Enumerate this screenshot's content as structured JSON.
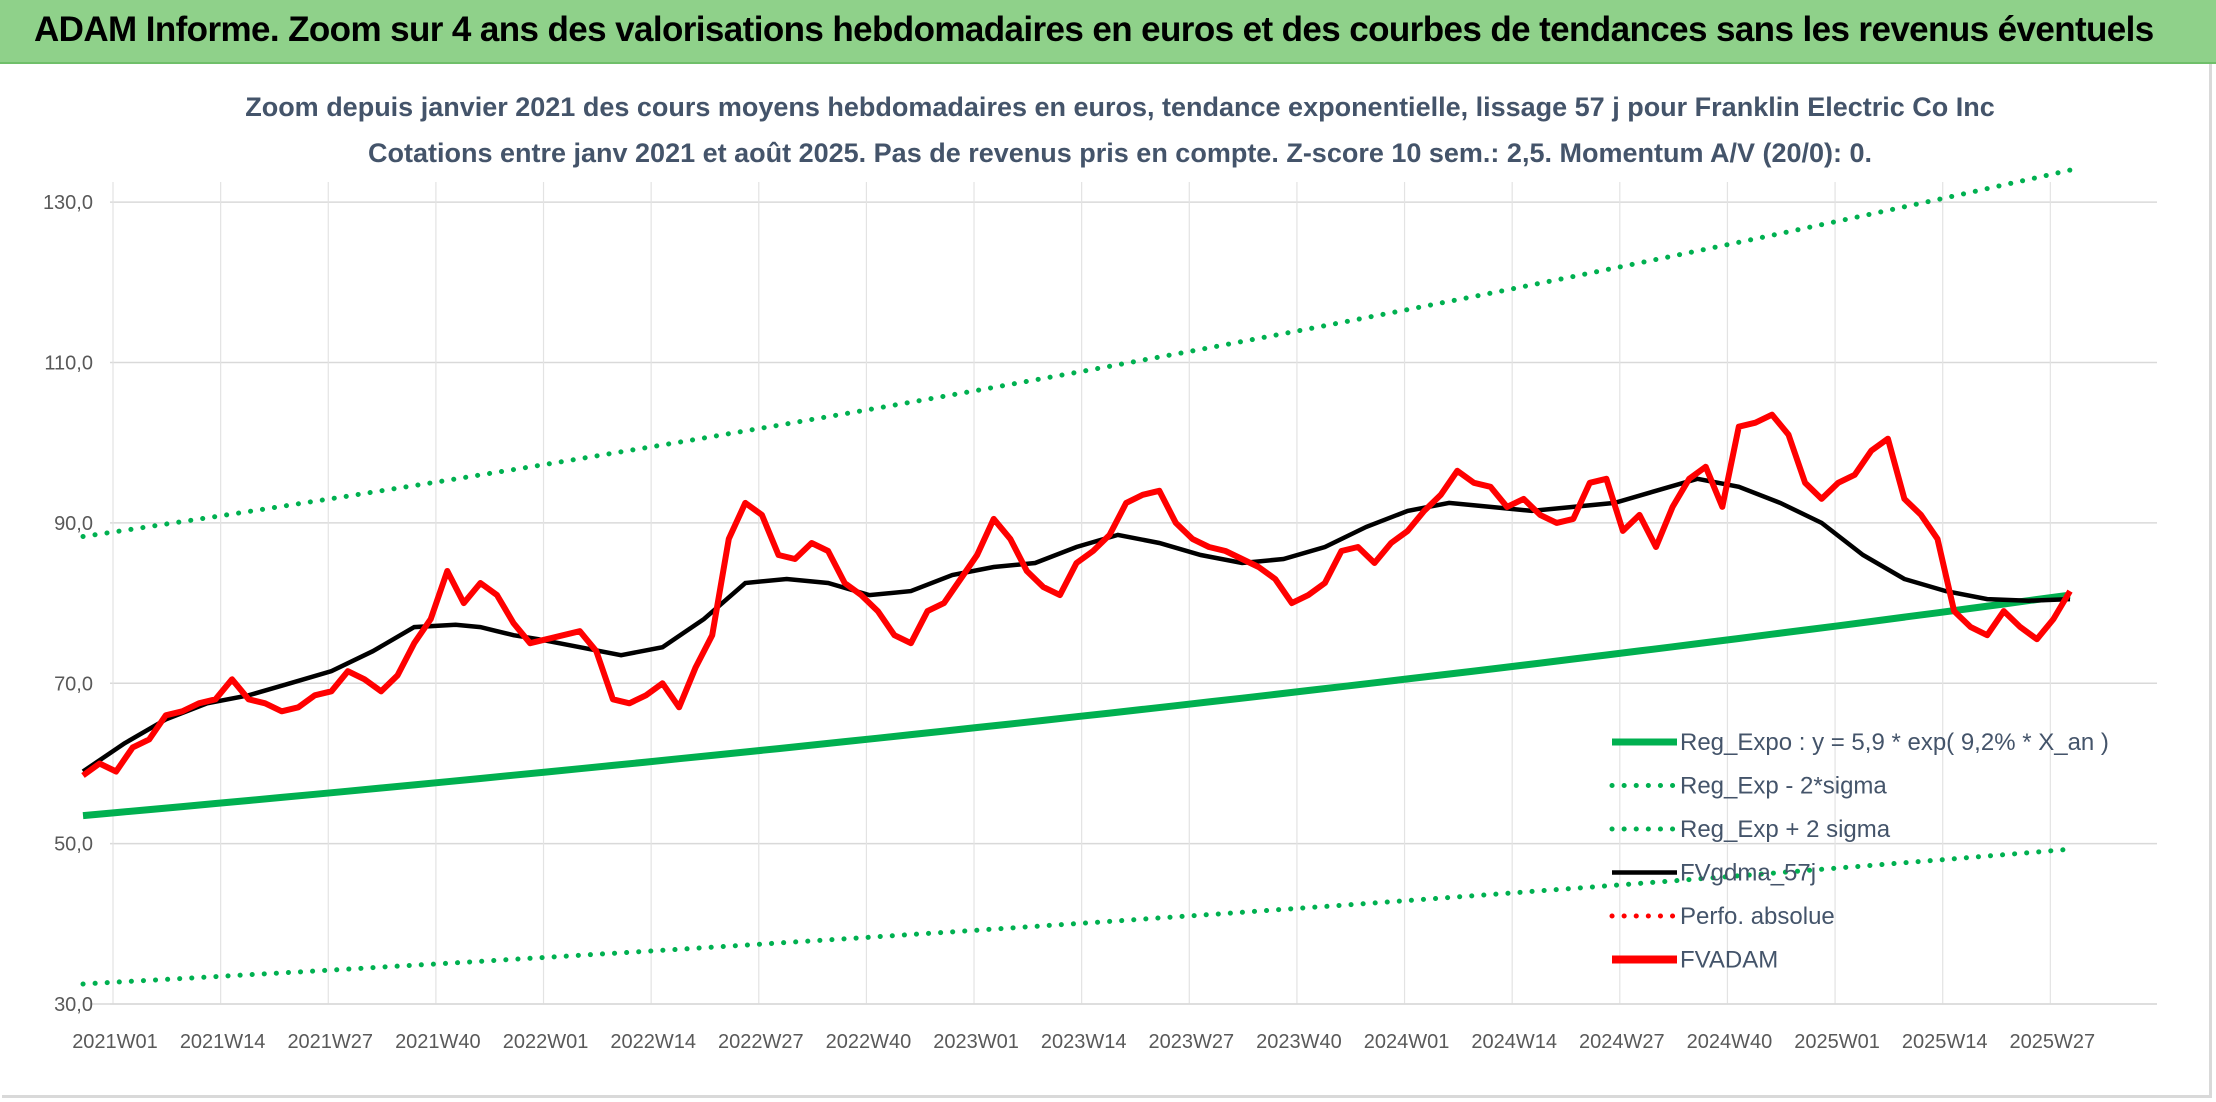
{
  "banner": {
    "title": "ADAM Informe. Zoom sur 4 ans des valorisations hebdomadaires en euros et des courbes de tendances sans les revenus éventuels"
  },
  "chart_data": {
    "type": "line",
    "title_line1": "Zoom depuis janvier 2021 des cours moyens hebdomadaires en euros, tendance exponentielle, lissage 57 j pour Franklin Electric Co Inc",
    "title_line2": "Cotations entre janv 2021 et août 2025. Pas de revenus pris en compte. Z-score 10 sem.: 2,5. Momentum A/V (20/0): 0.",
    "ylim": [
      30,
      140
    ],
    "y_ticks": [
      "30,0",
      "50,0",
      "70,0",
      "90,0",
      "110,0",
      "130,0"
    ],
    "y_tick_values": [
      30,
      50,
      70,
      90,
      110,
      130
    ],
    "x_tick_labels": [
      "2021W01",
      "2021W14",
      "2021W27",
      "2021W40",
      "2022W01",
      "2022W14",
      "2022W27",
      "2022W40",
      "2023W01",
      "2023W14",
      "2023W27",
      "2023W40",
      "2024W01",
      "2024W14",
      "2024W27",
      "2024W40",
      "2025W01",
      "2025W14",
      "2025W27"
    ],
    "x_range_weeks": [
      0,
      240
    ],
    "grid": true,
    "legend_position": "bottom-right",
    "colors": {
      "reg_expo": "#00b050",
      "bands": "#00b050",
      "smooth": "#000000",
      "perfo": "#ff0000",
      "fvadam": "#ff0000"
    },
    "series": [
      {
        "name": "Reg_Expo : y = 5,9 * exp( 9,2% *  X_an )",
        "style": "solid-thick",
        "x": [
          0,
          240
        ],
        "values": [
          53.5,
          81.0
        ]
      },
      {
        "name": "Reg_Exp - 2*sigma",
        "style": "dotted",
        "x": [
          0,
          240
        ],
        "values": [
          32.5,
          49.3
        ]
      },
      {
        "name": "Reg_Exp + 2 sigma",
        "style": "dotted",
        "x": [
          0,
          240
        ],
        "values": [
          88.3,
          134.0
        ]
      },
      {
        "name": "FVgdma_57j",
        "style": "solid",
        "x": [
          0,
          5,
          10,
          15,
          20,
          25,
          30,
          35,
          40,
          45,
          48,
          50,
          52,
          55,
          60,
          65,
          70,
          75,
          80,
          85,
          90,
          95,
          100,
          105,
          110,
          115,
          120,
          125,
          130,
          135,
          140,
          145,
          150,
          155,
          160,
          165,
          170,
          175,
          180,
          185,
          190,
          195,
          200,
          205,
          210,
          215,
          220,
          225,
          230,
          235,
          240
        ],
        "values": [
          59.0,
          62.5,
          65.5,
          67.5,
          68.5,
          70.0,
          71.5,
          74.0,
          77.0,
          77.3,
          77.0,
          76.5,
          76.0,
          75.5,
          74.5,
          73.5,
          74.5,
          78.0,
          82.5,
          83.0,
          82.5,
          81.0,
          81.5,
          83.5,
          84.5,
          85.0,
          87.0,
          88.5,
          87.5,
          86.0,
          85.0,
          85.5,
          87.0,
          89.5,
          91.5,
          92.5,
          92.0,
          91.5,
          92.0,
          92.5,
          94.0,
          95.5,
          94.5,
          92.5,
          90.0,
          86.0,
          83.0,
          81.5,
          80.5,
          80.3,
          80.5
        ]
      },
      {
        "name": "Perfo. absolue",
        "style": "dotted",
        "x": [],
        "values": []
      },
      {
        "name": "FVADAM",
        "style": "solid-thick",
        "x": [
          0,
          2,
          4,
          6,
          8,
          10,
          12,
          14,
          16,
          18,
          20,
          22,
          24,
          26,
          28,
          30,
          32,
          34,
          36,
          38,
          40,
          42,
          44,
          46,
          48,
          50,
          52,
          54,
          56,
          58,
          60,
          62,
          64,
          66,
          68,
          70,
          72,
          74,
          76,
          78,
          80,
          82,
          84,
          86,
          88,
          90,
          92,
          94,
          96,
          98,
          100,
          102,
          104,
          106,
          108,
          110,
          112,
          114,
          116,
          118,
          120,
          122,
          124,
          126,
          128,
          130,
          132,
          134,
          136,
          138,
          140,
          142,
          144,
          146,
          148,
          150,
          152,
          154,
          156,
          158,
          160,
          162,
          164,
          166,
          168,
          170,
          172,
          174,
          176,
          178,
          180,
          182,
          184,
          186,
          188,
          190,
          192,
          194,
          196,
          198,
          200,
          202,
          204,
          206,
          208,
          210,
          212,
          214,
          216,
          218,
          220,
          222,
          224,
          226,
          228,
          230,
          232,
          234,
          236,
          238,
          240
        ],
        "values": [
          58.5,
          60.0,
          59.0,
          62.0,
          63.0,
          66.0,
          66.5,
          67.5,
          68.0,
          70.5,
          68.0,
          67.5,
          66.5,
          67.0,
          68.5,
          69.0,
          71.5,
          70.5,
          69.0,
          71.0,
          75.0,
          78.0,
          84.0,
          80.0,
          82.5,
          81.0,
          77.5,
          75.0,
          75.5,
          76.0,
          76.5,
          74.0,
          68.0,
          67.5,
          68.5,
          70.0,
          67.0,
          72.0,
          76.0,
          88.0,
          92.5,
          91.0,
          86.0,
          85.5,
          87.5,
          86.5,
          82.5,
          81.0,
          79.0,
          76.0,
          75.0,
          79.0,
          80.0,
          83.0,
          86.0,
          90.5,
          88.0,
          84.0,
          82.0,
          81.0,
          85.0,
          86.5,
          88.5,
          92.5,
          93.5,
          94.0,
          90.0,
          88.0,
          87.0,
          86.5,
          85.5,
          84.5,
          83.0,
          80.0,
          81.0,
          82.5,
          86.5,
          87.0,
          85.0,
          87.5,
          89.0,
          91.5,
          93.5,
          96.5,
          95.0,
          94.5,
          92.0,
          93.0,
          91.0,
          90.0,
          90.5,
          95.0,
          95.5,
          89.0,
          91.0,
          87.0,
          92.0,
          95.5,
          97.0,
          92.0,
          102.0,
          102.5,
          103.5,
          101.0,
          95.0,
          93.0,
          95.0,
          96.0,
          99.0,
          100.5,
          93.0,
          91.0,
          88.0,
          79.0,
          77.0,
          76.0,
          79.0,
          77.0,
          75.5,
          78.0,
          81.5
        ]
      }
    ]
  }
}
